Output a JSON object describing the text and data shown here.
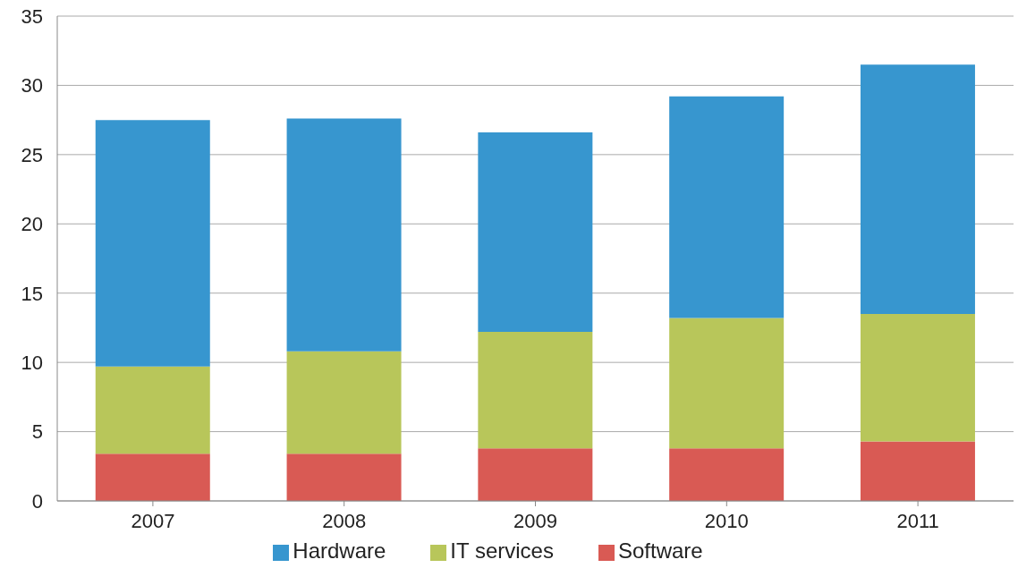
{
  "chart_data": {
    "type": "bar",
    "stacked": true,
    "categories": [
      "2007",
      "2008",
      "2009",
      "2010",
      "2011"
    ],
    "series": [
      {
        "name": "Software",
        "color": "#d95a54",
        "values": [
          3.4,
          3.4,
          3.8,
          3.8,
          4.3
        ]
      },
      {
        "name": "IT services",
        "color": "#b8c65a",
        "values": [
          6.3,
          7.4,
          8.4,
          9.4,
          9.2
        ]
      },
      {
        "name": "Hardware",
        "color": "#3796cf",
        "values": [
          17.8,
          16.8,
          14.4,
          16.0,
          18.0
        ]
      }
    ],
    "ylim": [
      0,
      35
    ],
    "yticks": [
      0,
      5,
      10,
      15,
      20,
      25,
      30,
      35
    ],
    "grid": "y",
    "legend": "bottom"
  }
}
